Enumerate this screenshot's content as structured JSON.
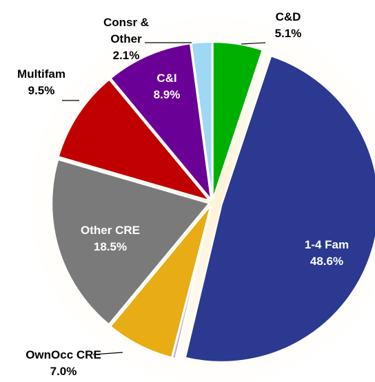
{
  "chart_data": {
    "type": "pie",
    "categories": [
      "C&D",
      "1-4 Fam",
      null,
      "OwnOcc CRE",
      "Other CRE",
      "Multifam",
      "C&I",
      "Consr & Other"
    ],
    "values": [
      5.1,
      48.6,
      0.3,
      7.0,
      18.5,
      9.5,
      8.9,
      2.1
    ],
    "value_labels": [
      "5.1%",
      "48.6%",
      null,
      "7.0%",
      "18.5%",
      "9.5%",
      "8.9%",
      "2.1%"
    ],
    "colors": [
      "#00b000",
      "#2b3990",
      "#b9aee0",
      "#e8ad14",
      "#7a7a7a",
      "#c00000",
      "#6b0096",
      "#9ed8f5"
    ]
  }
}
